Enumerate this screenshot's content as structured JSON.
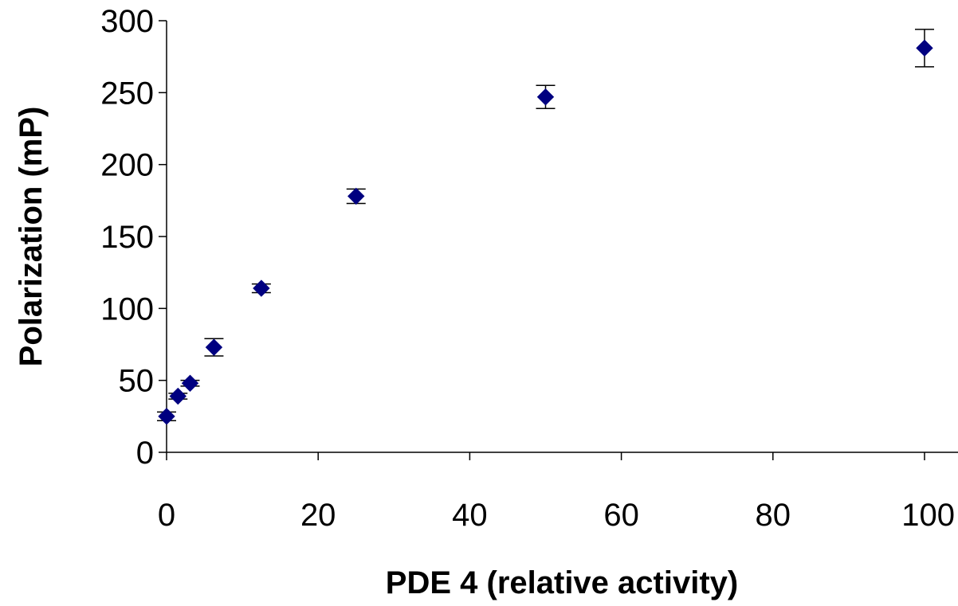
{
  "chart_data": {
    "type": "scatter",
    "title": "",
    "xlabel": "PDE 4 (relative activity)",
    "ylabel": "Polarization (mP)",
    "xlim": [
      0,
      100
    ],
    "ylim": [
      0,
      300
    ],
    "xticks": [
      0,
      20,
      40,
      60,
      80,
      100
    ],
    "yticks": [
      0,
      50,
      100,
      150,
      200,
      250,
      300
    ],
    "grid": false,
    "legend": "none",
    "marker": "diamond",
    "colors": {
      "marker": "#000080",
      "axis": "#000000",
      "error_bar": "#000000"
    },
    "points": [
      {
        "x": 0,
        "y": 25,
        "err": 3
      },
      {
        "x": 1.5,
        "y": 39,
        "err": 2
      },
      {
        "x": 3.1,
        "y": 48,
        "err": 2
      },
      {
        "x": 6.25,
        "y": 73,
        "err": 6
      },
      {
        "x": 12.5,
        "y": 114,
        "err": 3
      },
      {
        "x": 25,
        "y": 178,
        "err": 5
      },
      {
        "x": 50,
        "y": 247,
        "err": 8
      },
      {
        "x": 100,
        "y": 281,
        "err": 13
      }
    ]
  }
}
